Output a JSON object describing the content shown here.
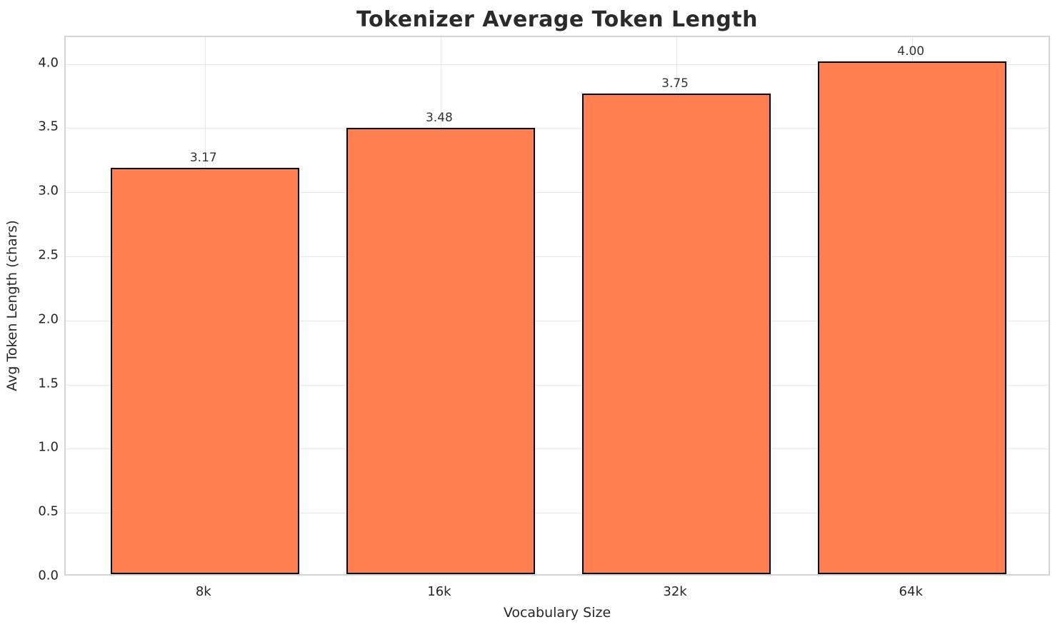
{
  "chart_data": {
    "type": "bar",
    "title": "Tokenizer Average Token Length",
    "xlabel": "Vocabulary Size",
    "ylabel": "Avg Token Length (chars)",
    "categories": [
      "8k",
      "16k",
      "32k",
      "64k"
    ],
    "values": [
      3.17,
      3.48,
      3.75,
      4.0
    ],
    "value_labels": [
      "3.17",
      "3.48",
      "3.75",
      "4.00"
    ],
    "yticks": [
      0.0,
      0.5,
      1.0,
      1.5,
      2.0,
      2.5,
      3.0,
      3.5,
      4.0
    ],
    "ytick_labels": [
      "0.0",
      "0.5",
      "1.0",
      "1.5",
      "2.0",
      "2.5",
      "3.0",
      "3.5",
      "4.0"
    ],
    "ylim": [
      0,
      4.21
    ],
    "xlim": [
      -0.59,
      3.59
    ],
    "bar_width_data_units": 0.8,
    "grid": true,
    "legend_position": "none",
    "colors": {
      "bar_fill": "#FF7F50",
      "bar_edge": "#000000",
      "grid": "#e7e7e7",
      "spine": "#d4d4d4",
      "text": "#262626",
      "title": "#2b2b2b",
      "background": "#ffffff"
    }
  }
}
